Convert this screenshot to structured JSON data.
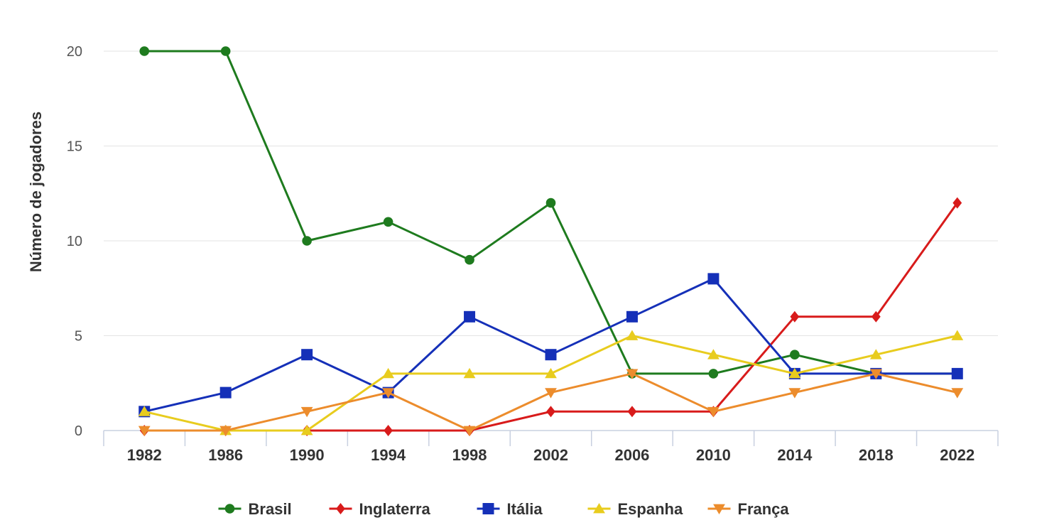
{
  "chart_data": {
    "type": "line",
    "title": "",
    "xlabel": "",
    "ylabel": "Número de jogadores",
    "ylim": [
      0,
      20
    ],
    "yticks": [
      0,
      5,
      10,
      15,
      20
    ],
    "grid": true,
    "legend_position": "bottom",
    "categories": [
      "1982",
      "1986",
      "1990",
      "1994",
      "1998",
      "2002",
      "2006",
      "2010",
      "2014",
      "2018",
      "2022"
    ],
    "series": [
      {
        "name": "Brasil",
        "color": "#1e7b1e",
        "marker": "circle",
        "values": [
          20,
          20,
          10,
          11,
          9,
          12,
          3,
          3,
          4,
          3,
          3
        ]
      },
      {
        "name": "Inglaterra",
        "color": "#d81b1b",
        "marker": "diamond",
        "values": [
          0,
          0,
          0,
          0,
          0,
          1,
          1,
          1,
          6,
          6,
          12
        ]
      },
      {
        "name": "Itália",
        "color": "#1530b8",
        "marker": "square",
        "values": [
          1,
          2,
          4,
          2,
          6,
          4,
          6,
          8,
          3,
          3,
          3
        ]
      },
      {
        "name": "Espanha",
        "color": "#e8cc1e",
        "marker": "triangle",
        "values": [
          1,
          0,
          0,
          3,
          3,
          3,
          5,
          4,
          3,
          4,
          5
        ]
      },
      {
        "name": "França",
        "color": "#ec8c2c",
        "marker": "triangle-down",
        "values": [
          0,
          0,
          1,
          2,
          0,
          2,
          3,
          1,
          2,
          3,
          2
        ]
      }
    ]
  }
}
